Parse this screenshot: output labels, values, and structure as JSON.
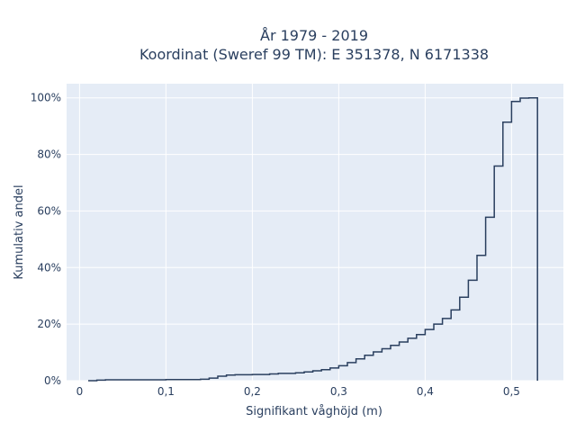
{
  "chart_data": {
    "type": "line",
    "subtype": "ecdf-step",
    "title_line1": "År 1979 - 2019",
    "title_line2": "Koordinat (Sweref 99 TM): E 351378, N 6171338",
    "xlabel": "Signifikant våghöjd (m)",
    "ylabel": "Kumulativ andel",
    "xlim": [
      -0.015,
      0.56
    ],
    "ylim": [
      0,
      1.05
    ],
    "x_ticks": [
      0,
      0.1,
      0.2,
      0.3,
      0.4,
      0.5
    ],
    "x_tick_labels": [
      "0",
      "0,1",
      "0,2",
      "0,3",
      "0,4",
      "0,5"
    ],
    "y_ticks": [
      0,
      0.2,
      0.4,
      0.6,
      0.8,
      1.0
    ],
    "y_tick_labels": [
      "0%",
      "20%",
      "40%",
      "60%",
      "80%",
      "100%"
    ],
    "grid": true,
    "background": "#e5ecf6",
    "line_color": "#2a3f5f",
    "x": [
      0.01,
      0.02,
      0.03,
      0.05,
      0.1,
      0.14,
      0.15,
      0.16,
      0.17,
      0.18,
      0.2,
      0.22,
      0.23,
      0.25,
      0.26,
      0.27,
      0.28,
      0.29,
      0.3,
      0.31,
      0.32,
      0.33,
      0.34,
      0.35,
      0.36,
      0.37,
      0.38,
      0.39,
      0.4,
      0.41,
      0.42,
      0.43,
      0.44,
      0.45,
      0.46,
      0.47,
      0.48,
      0.49,
      0.5,
      0.51,
      0.52,
      0.53
    ],
    "y": [
      0.0,
      0.002,
      0.003,
      0.003,
      0.004,
      0.005,
      0.009,
      0.016,
      0.02,
      0.021,
      0.022,
      0.024,
      0.026,
      0.028,
      0.031,
      0.035,
      0.039,
      0.045,
      0.053,
      0.064,
      0.077,
      0.09,
      0.102,
      0.113,
      0.125,
      0.137,
      0.15,
      0.163,
      0.181,
      0.2,
      0.22,
      0.25,
      0.295,
      0.355,
      0.443,
      0.578,
      0.759,
      0.914,
      0.987,
      0.999,
      1.0,
      1.0
    ]
  }
}
